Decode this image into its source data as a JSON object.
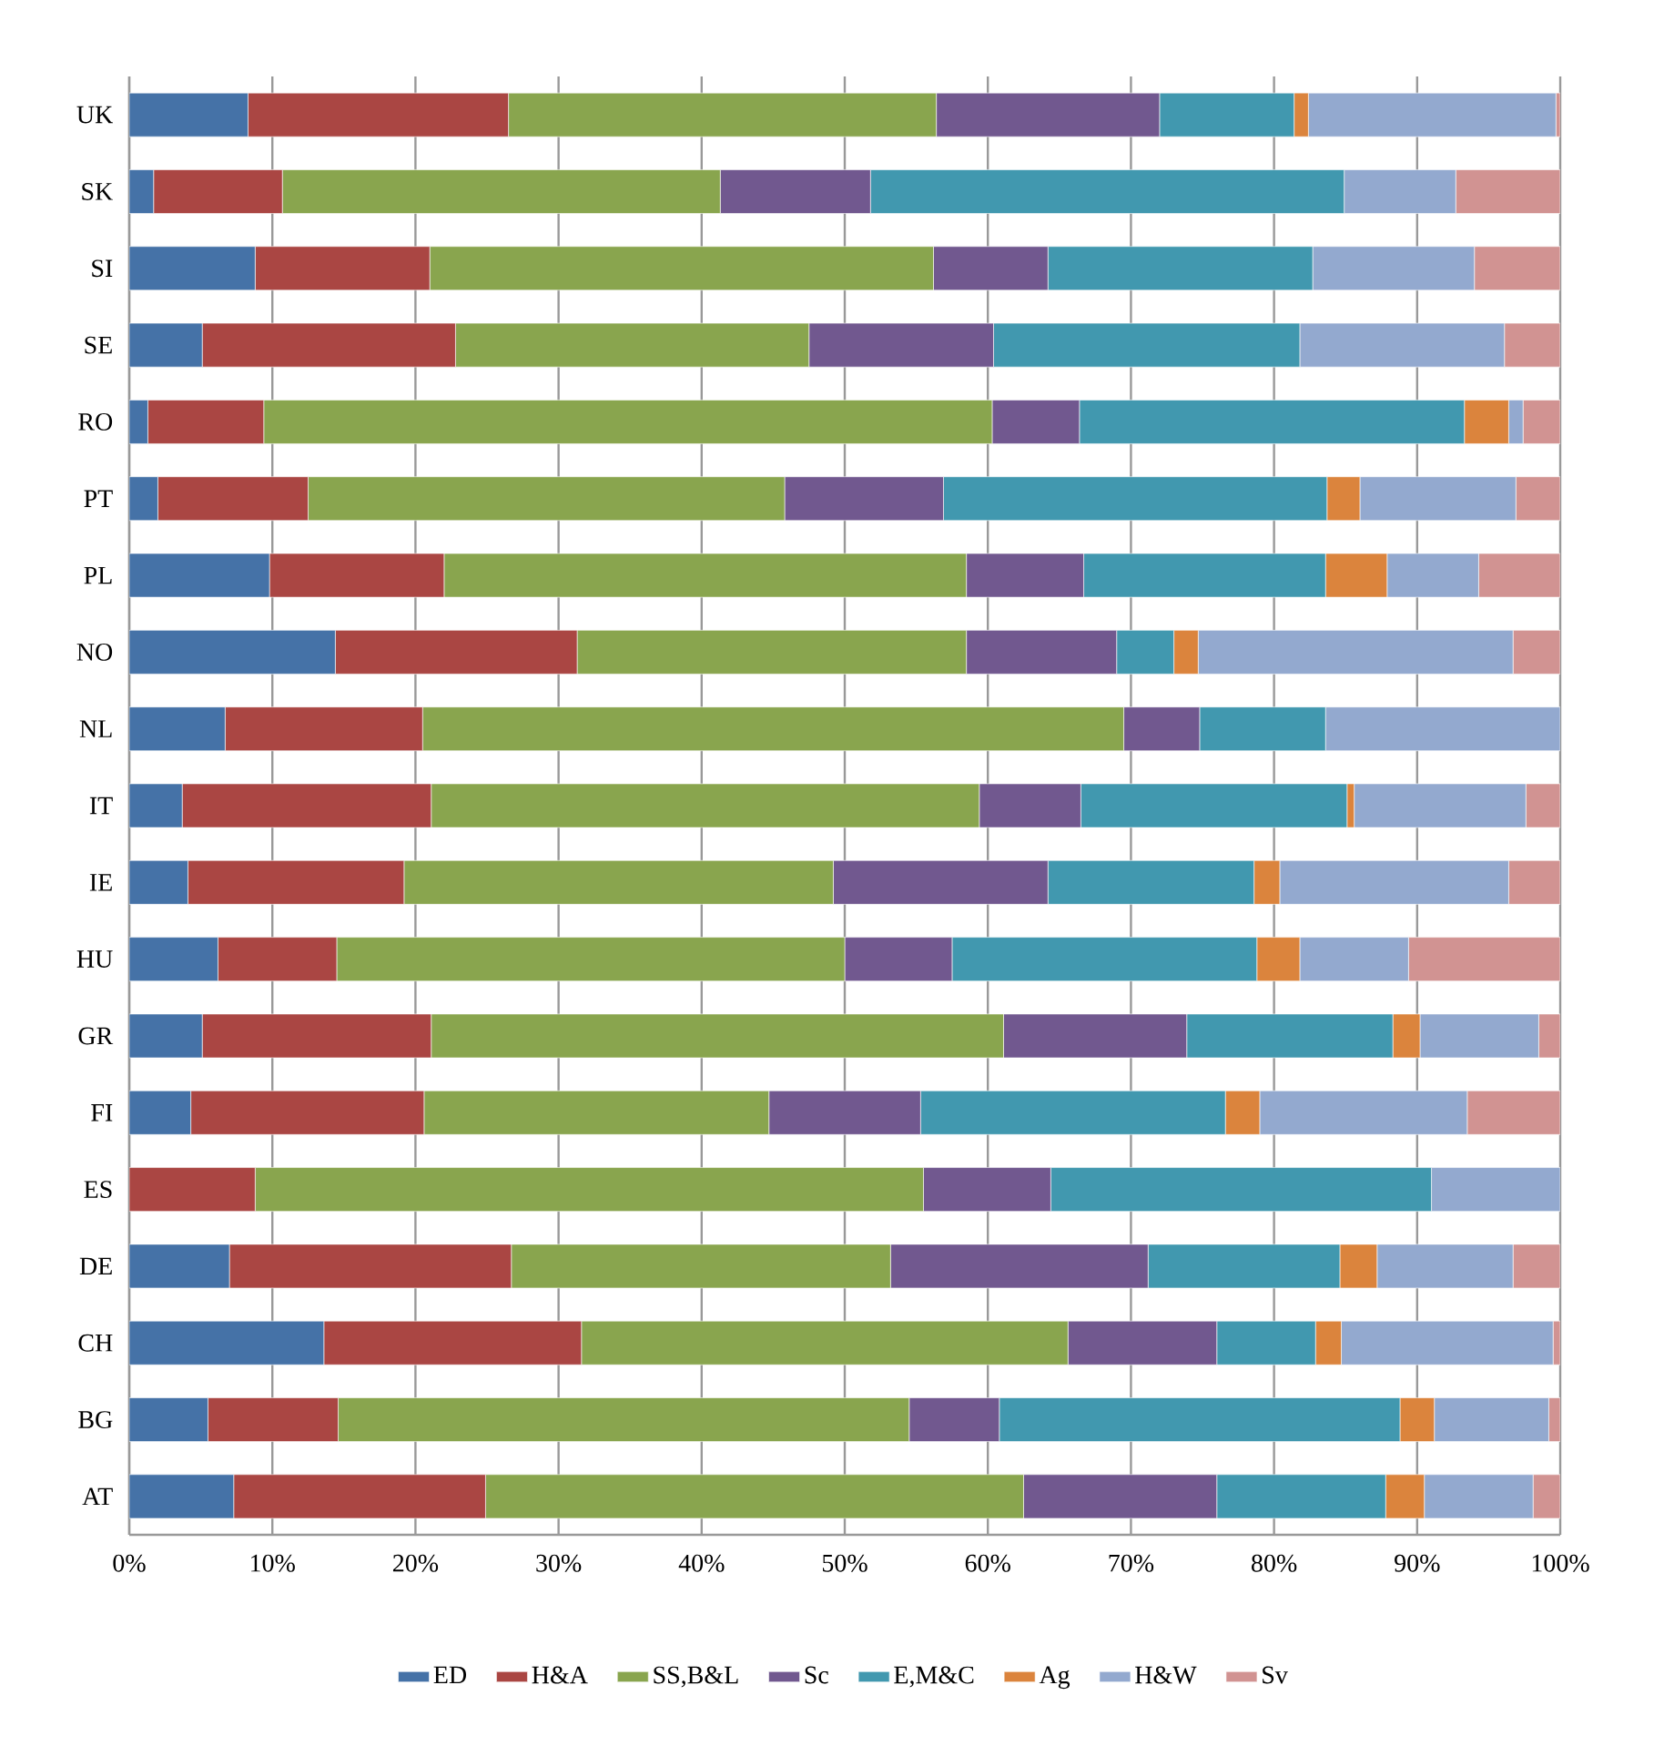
{
  "chart_data": {
    "type": "bar",
    "orientation": "horizontal",
    "stacked": true,
    "categories": [
      "UK",
      "SK",
      "SI",
      "SE",
      "RO",
      "PT",
      "PL",
      "NO",
      "NL",
      "IT",
      "IE",
      "HU",
      "GR",
      "FI",
      "ES",
      "DE",
      "CH",
      "BG",
      "AT"
    ],
    "series": [
      {
        "name": "ED",
        "color": "#4572a7",
        "values": [
          8.3,
          1.7,
          8.8,
          5.1,
          1.3,
          2.0,
          9.8,
          14.4,
          6.7,
          3.7,
          4.1,
          6.2,
          5.1,
          4.3,
          0,
          7.0,
          13.6,
          5.5,
          7.3
        ]
      },
      {
        "name": "H&A",
        "color": "#aa4643",
        "values": [
          18.2,
          9.0,
          12.2,
          17.7,
          8.1,
          10.5,
          12.2,
          16.9,
          13.8,
          17.4,
          15.1,
          8.3,
          16.0,
          16.3,
          8.8,
          19.7,
          18.0,
          9.1,
          17.6
        ]
      },
      {
        "name": "SS,B&L",
        "color": "#89a54e",
        "values": [
          29.9,
          30.6,
          35.2,
          24.7,
          50.9,
          33.3,
          36.5,
          27.2,
          49.0,
          38.3,
          30.0,
          35.5,
          40.0,
          24.1,
          46.7,
          26.5,
          34.0,
          39.9,
          37.6
        ]
      },
      {
        "name": "Sc",
        "color": "#71588f",
        "values": [
          15.6,
          10.5,
          8.0,
          12.9,
          6.1,
          11.1,
          8.2,
          10.5,
          5.3,
          7.1,
          15.0,
          7.5,
          12.8,
          10.6,
          8.9,
          18.0,
          10.4,
          6.3,
          13.5
        ]
      },
      {
        "name": "E,M&C",
        "color": "#4198af",
        "values": [
          9.4,
          33.1,
          18.5,
          21.4,
          26.9,
          26.8,
          16.9,
          4.0,
          8.8,
          18.6,
          14.4,
          21.3,
          14.4,
          21.3,
          26.6,
          13.4,
          6.9,
          28.0,
          11.8
        ]
      },
      {
        "name": "Ag",
        "color": "#db843d",
        "values": [
          1.0,
          0,
          0,
          0,
          3.1,
          2.3,
          4.3,
          1.7,
          0,
          0.5,
          1.8,
          3.0,
          1.9,
          2.4,
          0,
          2.6,
          1.8,
          2.4,
          2.7
        ]
      },
      {
        "name": "H&W",
        "color": "#93a9cf",
        "values": [
          17.3,
          7.8,
          11.3,
          14.3,
          1.0,
          10.9,
          6.4,
          22.0,
          16.4,
          12.0,
          16.0,
          7.6,
          8.3,
          14.5,
          9.0,
          9.5,
          14.8,
          8.0,
          7.6
        ]
      },
      {
        "name": "Sv",
        "color": "#d19392",
        "values": [
          0.3,
          7.3,
          6.0,
          3.9,
          2.6,
          3.1,
          5.7,
          3.3,
          0,
          2.4,
          3.6,
          10.6,
          1.5,
          6.5,
          0,
          3.3,
          0.5,
          0.8,
          1.9
        ]
      }
    ],
    "xlim": [
      0,
      100
    ],
    "xticks": [
      {
        "value": 0,
        "label": "0%"
      },
      {
        "value": 10,
        "label": "10%"
      },
      {
        "value": 20,
        "label": "20%"
      },
      {
        "value": 30,
        "label": "30%"
      },
      {
        "value": 40,
        "label": "40%"
      },
      {
        "value": 50,
        "label": "50%"
      },
      {
        "value": 60,
        "label": "60%"
      },
      {
        "value": 70,
        "label": "70%"
      },
      {
        "value": 80,
        "label": "80%"
      },
      {
        "value": 90,
        "label": "90%"
      },
      {
        "value": 100,
        "label": "100%"
      }
    ],
    "grid": "x",
    "legend": "bottom"
  }
}
